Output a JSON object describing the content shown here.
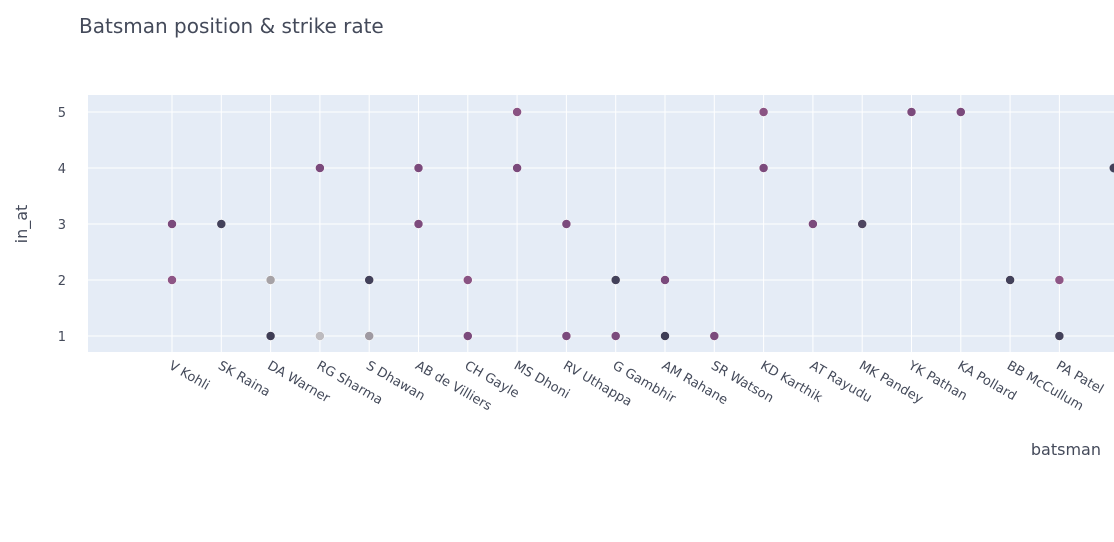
{
  "chart_data": {
    "type": "scatter",
    "title": "Batsman position & strike rate",
    "xlabel": "batsman",
    "ylabel": "in_at",
    "categories": [
      "V Kohli",
      "SK Raina",
      "DA Warner",
      "RG Sharma",
      "S Dhawan",
      "AB de Villiers",
      "CH Gayle",
      "MS Dhoni",
      "RV Uthappa",
      "G Gambhir",
      "AM Rahane",
      "SR Watson",
      "KD Karthik",
      "AT Rayudu",
      "MK Pandey",
      "YK Pathan",
      "KA Pollard",
      "BB McCullum",
      "PA Patel"
    ],
    "yticks": [
      1,
      2,
      3,
      4,
      5
    ],
    "ylim": [
      0.65,
      5.35
    ],
    "grid": true,
    "colors": {
      "plot_bg": "#e5ecf6",
      "grid": "#ffffff",
      "text": "#444a5a"
    },
    "points": [
      {
        "x": "V Kohli",
        "y": 3,
        "color": "#7b4a7c"
      },
      {
        "x": "V Kohli",
        "y": 2,
        "color": "#8e5686"
      },
      {
        "x": "SK Raina",
        "y": 3,
        "color": "#43415a"
      },
      {
        "x": "DA Warner",
        "y": 2,
        "color": "#a6a2a6"
      },
      {
        "x": "DA Warner",
        "y": 1,
        "color": "#3f3d55"
      },
      {
        "x": "RG Sharma",
        "y": 4,
        "color": "#7b4a7c"
      },
      {
        "x": "RG Sharma",
        "y": 1,
        "color": "#bdbbbf"
      },
      {
        "x": "S Dhawan",
        "y": 2,
        "color": "#43415a"
      },
      {
        "x": "S Dhawan",
        "y": 1,
        "color": "#9f9aa2"
      },
      {
        "x": "AB de Villiers",
        "y": 4,
        "color": "#7b4a7c"
      },
      {
        "x": "AB de Villiers",
        "y": 3,
        "color": "#7d4b7d"
      },
      {
        "x": "CH Gayle",
        "y": 2,
        "color": "#8a5383"
      },
      {
        "x": "CH Gayle",
        "y": 1,
        "color": "#7b4a7c"
      },
      {
        "x": "MS Dhoni",
        "y": 5,
        "color": "#8a5383"
      },
      {
        "x": "MS Dhoni",
        "y": 4,
        "color": "#7b4a7c"
      },
      {
        "x": "RV Uthappa",
        "y": 3,
        "color": "#7b4a7c"
      },
      {
        "x": "RV Uthappa",
        "y": 1,
        "color": "#7b4a7c"
      },
      {
        "x": "G Gambhir",
        "y": 2,
        "color": "#43415a"
      },
      {
        "x": "G Gambhir",
        "y": 1,
        "color": "#7b4a7c"
      },
      {
        "x": "AM Rahane",
        "y": 2,
        "color": "#7b4a7c"
      },
      {
        "x": "AM Rahane",
        "y": 1,
        "color": "#3f3d55"
      },
      {
        "x": "SR Watson",
        "y": 1,
        "color": "#7b4a7c"
      },
      {
        "x": "KD Karthik",
        "y": 5,
        "color": "#8a5383"
      },
      {
        "x": "KD Karthik",
        "y": 4,
        "color": "#7b4a7c"
      },
      {
        "x": "AT Rayudu",
        "y": 3,
        "color": "#7b4a7c"
      },
      {
        "x": "MK Pandey",
        "y": 3,
        "color": "#4f4661"
      },
      {
        "x": "YK Pathan",
        "y": 5,
        "color": "#7b4a7c"
      },
      {
        "x": "KA Pollard",
        "y": 5,
        "color": "#7b4a7c"
      },
      {
        "x": "BB McCullum",
        "y": 2,
        "color": "#43415a"
      },
      {
        "x": "PA Patel",
        "y": 2,
        "color": "#8e5686"
      },
      {
        "x": "PA Patel",
        "y": 1,
        "color": "#43415a"
      }
    ],
    "clipped_points": [
      {
        "y": 4,
        "color": "#43415a"
      }
    ]
  }
}
